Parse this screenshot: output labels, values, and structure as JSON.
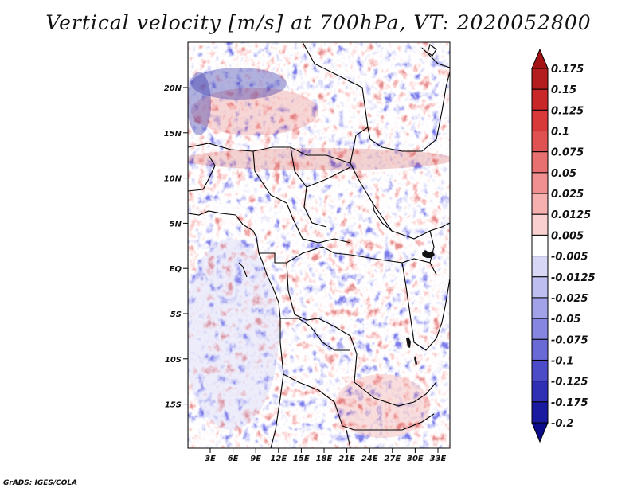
{
  "title": "Vertical velocity [m/s] at 700hPa, VT: 2020052800",
  "credit": "GrADS: IGES/COLA",
  "map": {
    "lat_labels": [
      "20N",
      "15N",
      "10N",
      "5N",
      "EQ",
      "5S",
      "10S",
      "15S"
    ],
    "lon_labels": [
      "3E",
      "6E",
      "9E",
      "12E",
      "15E",
      "18E",
      "21E",
      "24E",
      "27E",
      "30E",
      "33E"
    ]
  },
  "colorbar": {
    "labels": [
      "0.175",
      "0.15",
      "0.125",
      "0.1",
      "0.075",
      "0.05",
      "0.025",
      "0.0125",
      "0.005",
      "-0.005",
      "-0.0125",
      "-0.025",
      "-0.05",
      "-0.075",
      "-0.1",
      "-0.125",
      "-0.175",
      "-0.2"
    ],
    "colors": [
      "#a41414",
      "#b51e1e",
      "#c82828",
      "#d83a3a",
      "#e05252",
      "#e87070",
      "#f09090",
      "#f6b0b0",
      "#fad0d0",
      "#ffffff",
      "#d8d8f6",
      "#bebef0",
      "#a2a2e8",
      "#8686e0",
      "#6a6ad6",
      "#4c4cc8",
      "#3030b4",
      "#1a1aa0",
      "#0c0c8a"
    ]
  }
}
